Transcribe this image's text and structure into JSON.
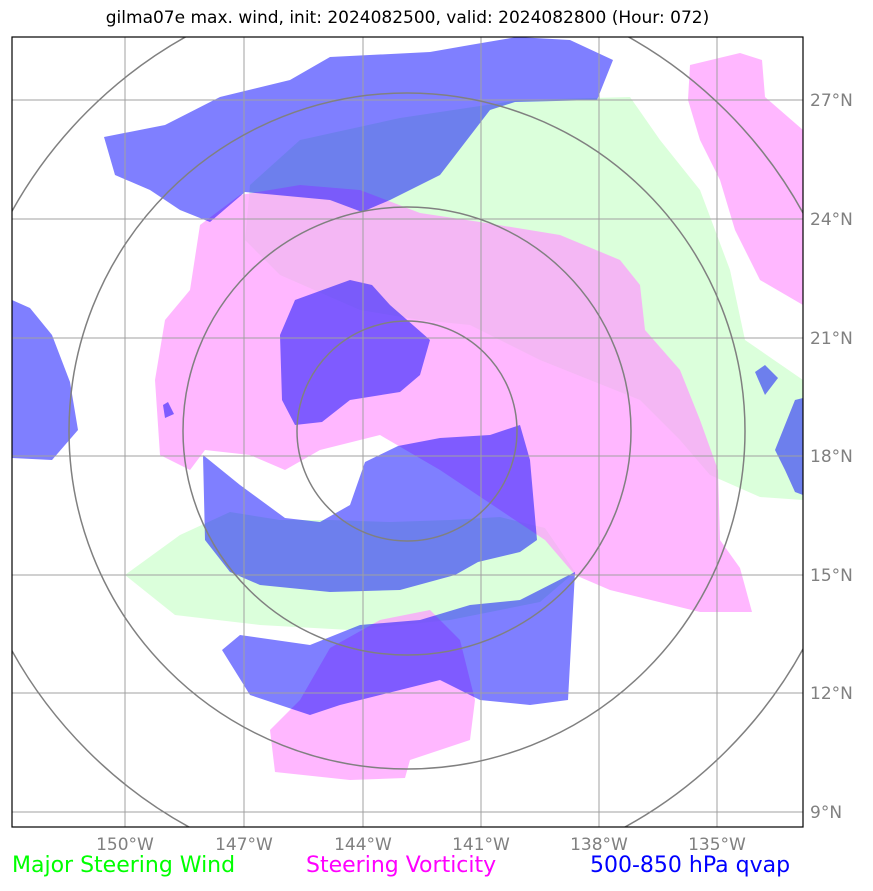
{
  "title": "gilma07e max. wind, init: 2024082500, valid: 2024082800 (Hour: 072)",
  "map": {
    "lon_ticks": [
      "150°W",
      "147°W",
      "144°W",
      "141°W",
      "138°W",
      "135°W"
    ],
    "lat_ticks": [
      "27°N",
      "24°N",
      "21°N",
      "18°N",
      "15°N",
      "12°N",
      "9°N"
    ]
  },
  "layers": [
    {
      "name": "Major Steering Wind",
      "color": "#00ff00",
      "fill": "#ccffcc"
    },
    {
      "name": "Steering Vorticity",
      "color": "#ff00ff",
      "fill": "#ff99ff"
    },
    {
      "name": "500-850 hPa qvap",
      "color": "#0000ff",
      "fill": "#0000ff"
    }
  ],
  "legend": {
    "wind": "Major Steering Wind",
    "vorticity": "Steering Vorticity",
    "qvap": "500-850 hPa qvap"
  }
}
